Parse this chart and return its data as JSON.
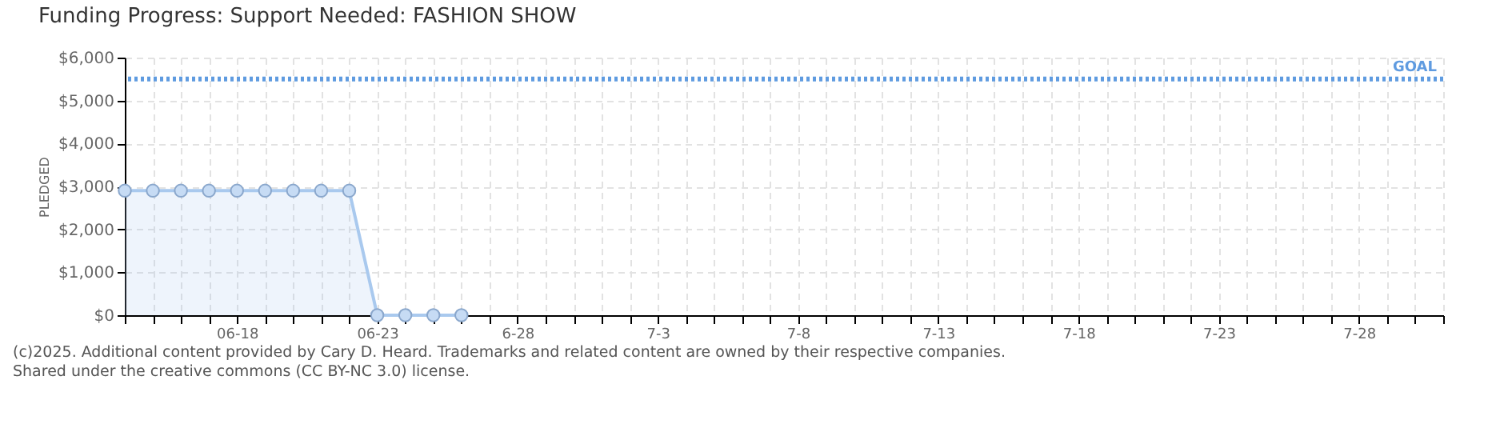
{
  "chart_data": {
    "type": "area",
    "title": "Funding Progress: Support Needed: FASHION SHOW",
    "ylabel": "PLEDGED",
    "x": [
      "--06-14",
      "--06-15",
      "--06-16",
      "--06-17",
      "--06-18",
      "--06-19",
      "--06-20",
      "--06-21",
      "--06-22",
      "--06-23",
      "--06-24",
      "--06-25",
      "--06-26"
    ],
    "series": [
      {
        "color": "#a9c9ee",
        "values": [
          2900,
          2900,
          2900,
          2900,
          2900,
          2900,
          2900,
          2900,
          2900,
          0,
          0,
          0,
          0
        ]
      }
    ],
    "xlim": [
      "--06-14",
      "--07-31"
    ],
    "xticks": [
      {
        "value": "--06-14",
        "label": null
      },
      {
        "value": "--06-15",
        "label": null
      },
      {
        "value": "--06-16",
        "label": null
      },
      {
        "value": "--06-17",
        "label": null
      },
      {
        "value": "--06-18",
        "label": "06-18"
      },
      {
        "value": "--06-19",
        "label": null
      },
      {
        "value": "--06-20",
        "label": null
      },
      {
        "value": "--06-21",
        "label": null
      },
      {
        "value": "--06-22",
        "label": null
      },
      {
        "value": "--06-23",
        "label": "06-23"
      },
      {
        "value": "--06-24",
        "label": null
      },
      {
        "value": "--06-25",
        "label": null
      },
      {
        "value": "--06-26",
        "label": null
      },
      {
        "value": "--06-27",
        "label": null
      },
      {
        "value": "--06-28",
        "label": "6-28"
      },
      {
        "value": "--06-29",
        "label": null
      },
      {
        "value": "--06-30",
        "label": null
      },
      {
        "value": "--07-01",
        "label": null
      },
      {
        "value": "--07-02",
        "label": null
      },
      {
        "value": "--07-03",
        "label": "7-3"
      },
      {
        "value": "--07-04",
        "label": null
      },
      {
        "value": "--07-05",
        "label": null
      },
      {
        "value": "--07-06",
        "label": null
      },
      {
        "value": "--07-07",
        "label": null
      },
      {
        "value": "--07-08",
        "label": "7-8"
      },
      {
        "value": "--07-09",
        "label": null
      },
      {
        "value": "--07-10",
        "label": null
      },
      {
        "value": "--07-11",
        "label": null
      },
      {
        "value": "--07-12",
        "label": null
      },
      {
        "value": "--07-13",
        "label": "7-13"
      },
      {
        "value": "--07-14",
        "label": null
      },
      {
        "value": "--07-15",
        "label": null
      },
      {
        "value": "--07-16",
        "label": null
      },
      {
        "value": "--07-17",
        "label": null
      },
      {
        "value": "--07-18",
        "label": "7-18"
      },
      {
        "value": "--07-19",
        "label": null
      },
      {
        "value": "--07-20",
        "label": null
      },
      {
        "value": "--07-21",
        "label": null
      },
      {
        "value": "--07-22",
        "label": null
      },
      {
        "value": "--07-23",
        "label": "7-23"
      },
      {
        "value": "--07-24",
        "label": null
      },
      {
        "value": "--07-25",
        "label": null
      },
      {
        "value": "--07-26",
        "label": null
      },
      {
        "value": "--07-27",
        "label": null
      },
      {
        "value": "--07-28",
        "label": "7-28"
      },
      {
        "value": "--07-29",
        "label": null
      },
      {
        "value": "--07-30",
        "label": null
      },
      {
        "value": "--07-31",
        "label": null
      }
    ],
    "ylim": [
      0,
      6000
    ],
    "yticks": [
      {
        "value": 0,
        "label": "$0"
      },
      {
        "value": 1000,
        "label": "$1,000"
      },
      {
        "value": 2000,
        "label": "$2,000"
      },
      {
        "value": 3000,
        "label": "$3,000"
      },
      {
        "value": 4000,
        "label": "$4,000"
      },
      {
        "value": 5000,
        "label": "$5,000"
      },
      {
        "value": 6000,
        "label": "$6,000"
      }
    ],
    "ref_lines": [
      {
        "axis": "y",
        "value": 5500,
        "label": "GOAL",
        "color": "#5f9be0",
        "line_style": "dotted"
      }
    ],
    "grid": true,
    "legend": false,
    "marker": "circle",
    "line_style": "solid",
    "annotations": [
      "(c)2025. Additional content provided by Cary D. Heard. Trademarks and related content are owned by their respective companies.",
      "Shared under the creative commons (CC BY-NC 3.0) license."
    ]
  }
}
